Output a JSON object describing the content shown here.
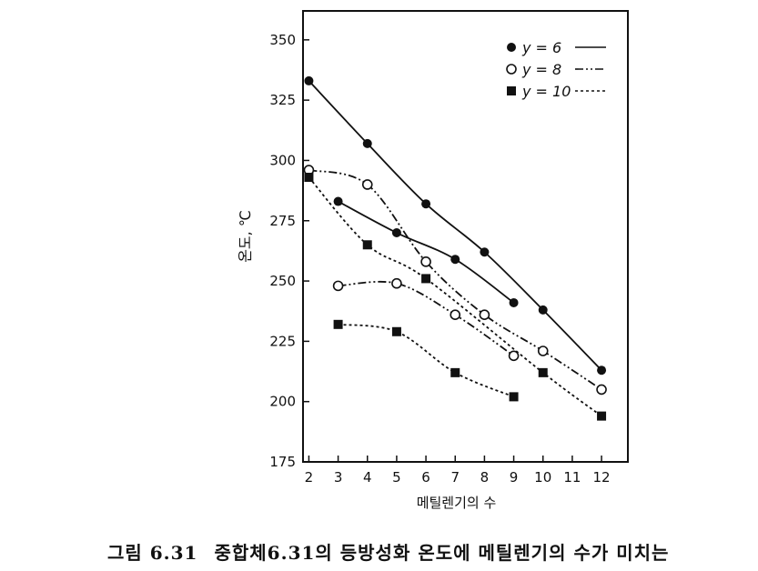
{
  "chart_data": {
    "type": "line",
    "title": "",
    "xlabel": "메틸렌기의 수",
    "ylabel": "온도, ℃",
    "xlim": [
      1.8,
      12.9
    ],
    "ylim": [
      175,
      362
    ],
    "xticks": [
      2,
      3,
      4,
      5,
      6,
      7,
      8,
      9,
      10,
      11,
      12
    ],
    "yticks": [
      175,
      200,
      225,
      250,
      275,
      300,
      325,
      350
    ],
    "legend_position": "top-right",
    "series": [
      {
        "name": "y = 6",
        "marker": "filled-circle",
        "dash": "solid",
        "branches": [
          {
            "x": [
              2,
              4,
              6,
              8,
              10,
              12
            ],
            "y": [
              333,
              307,
              282,
              262,
              238,
              213
            ]
          },
          {
            "x": [
              3,
              5,
              7,
              9
            ],
            "y": [
              283,
              270,
              259,
              241
            ]
          }
        ]
      },
      {
        "name": "y = 8",
        "marker": "open-circle",
        "dash": "dash-dot-dot",
        "branches": [
          {
            "x": [
              2,
              4,
              6,
              8,
              10,
              12
            ],
            "y": [
              296,
              290,
              258,
              236,
              221,
              205
            ]
          },
          {
            "x": [
              3,
              5,
              7,
              9
            ],
            "y": [
              248,
              249,
              236,
              219
            ]
          }
        ]
      },
      {
        "name": "y = 10",
        "marker": "filled-square",
        "dash": "dotted",
        "branches": [
          {
            "x": [
              2,
              4,
              6,
              10,
              12
            ],
            "y": [
              293,
              265,
              251,
              212,
              194
            ]
          },
          {
            "x": [
              3,
              5,
              7,
              9
            ],
            "y": [
              232,
              229,
              212,
              202
            ]
          }
        ]
      }
    ]
  },
  "caption": {
    "number": "그림 6.31",
    "text": "중합체6.31의 등방성화 온도에 메틸렌기의 수가 미치는"
  }
}
